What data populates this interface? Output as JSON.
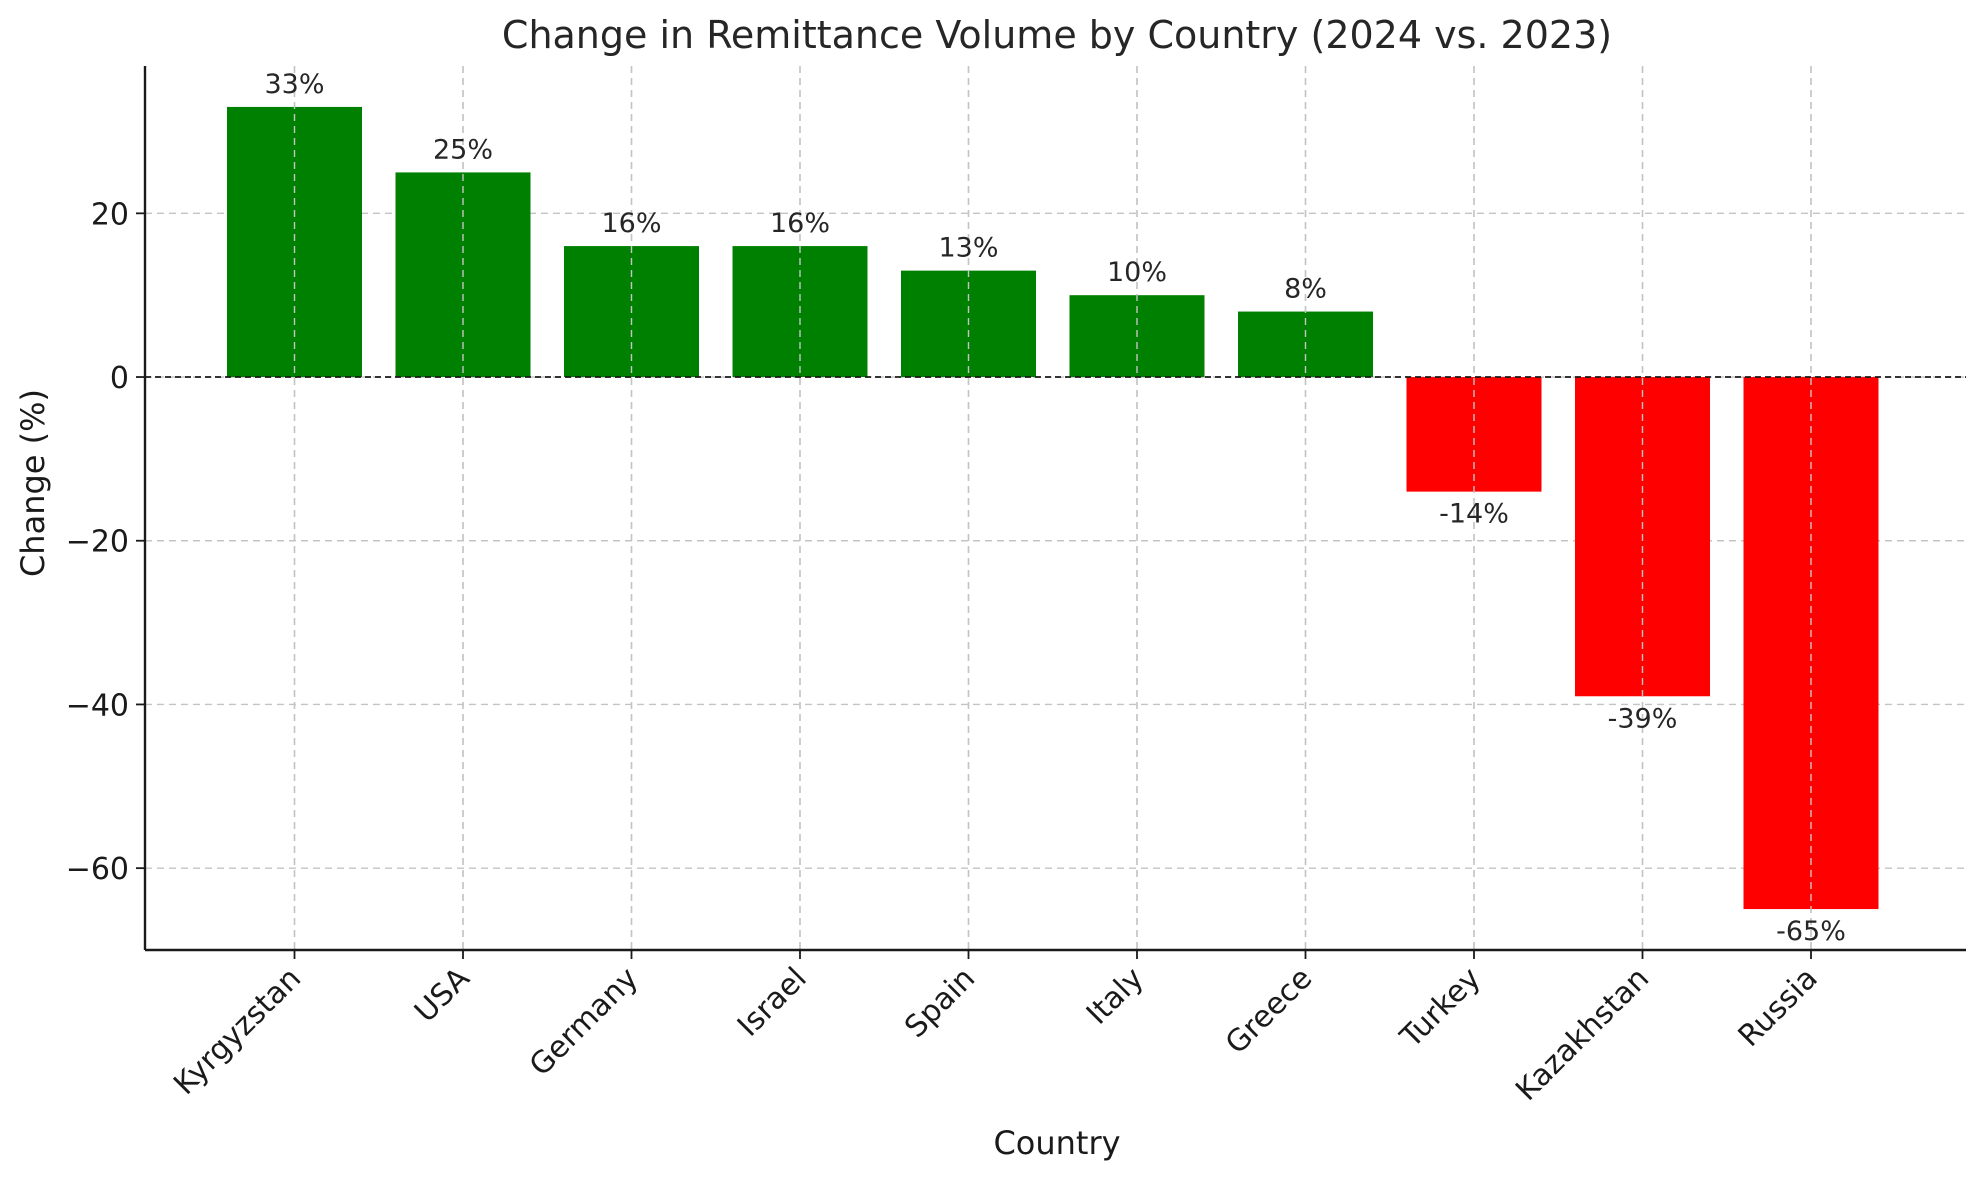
{
  "chart_data": {
    "type": "bar",
    "title": "Change in Remittance Volume by Country (2024 vs. 2023)",
    "xlabel": "Country",
    "ylabel": "Change (%)",
    "categories": [
      "Kyrgyzstan",
      "USA",
      "Germany",
      "Israel",
      "Spain",
      "Italy",
      "Greece",
      "Turkey",
      "Kazakhstan",
      "Russia"
    ],
    "values": [
      33,
      25,
      16,
      16,
      13,
      10,
      8,
      -14,
      -39,
      -65
    ],
    "data_labels": [
      "33%",
      "25%",
      "16%",
      "16%",
      "13%",
      "10%",
      "8%",
      "-14%",
      "-39%",
      "-65%"
    ],
    "ylim": [
      -70,
      38
    ],
    "yticks": [
      20,
      0,
      -20,
      -40,
      -60
    ],
    "ytick_labels": [
      "20",
      "0",
      "−20",
      "−40",
      "−60"
    ],
    "grid": true,
    "zero_line": "dashed",
    "colors": {
      "positive": "#008000",
      "negative": "#ff0000"
    }
  }
}
